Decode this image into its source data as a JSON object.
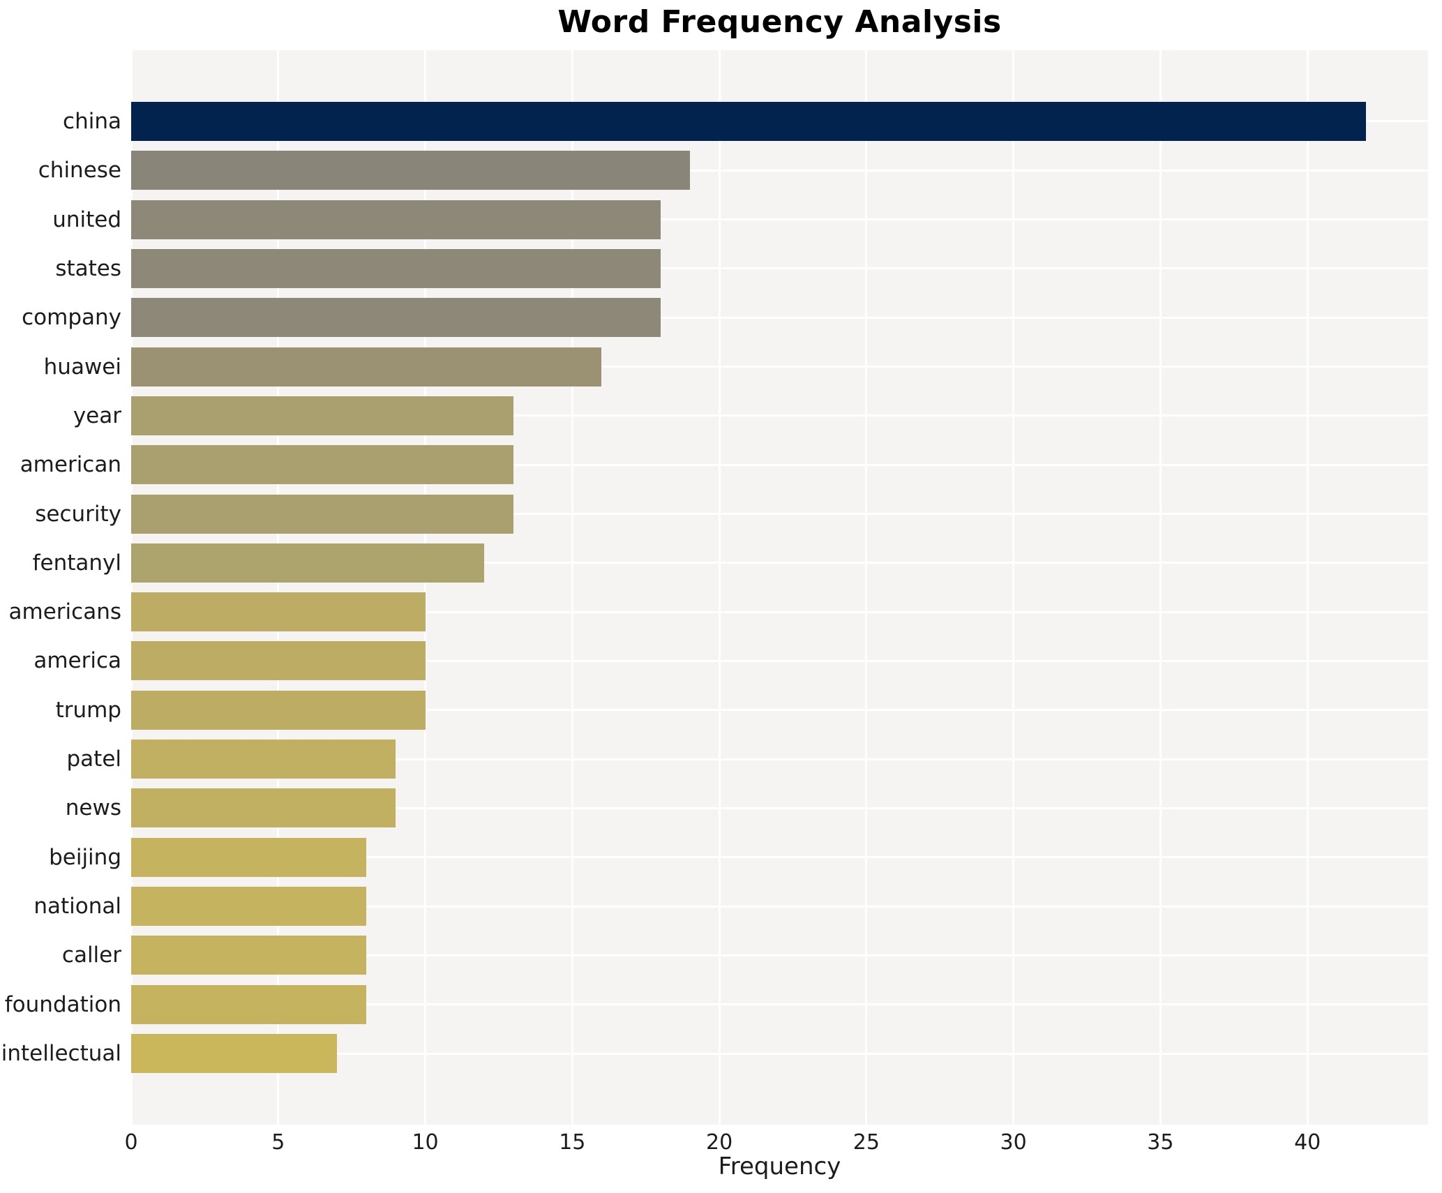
{
  "title": "Word Frequency Analysis",
  "chart_data": {
    "type": "bar",
    "orientation": "horizontal",
    "title": "Word Frequency Analysis",
    "xlabel": "Frequency",
    "ylabel": "",
    "categories": [
      "china",
      "chinese",
      "united",
      "states",
      "company",
      "huawei",
      "year",
      "american",
      "security",
      "fentanyl",
      "americans",
      "america",
      "trump",
      "patel",
      "news",
      "beijing",
      "national",
      "caller",
      "foundation",
      "intellectual"
    ],
    "values": [
      42,
      19,
      18,
      18,
      18,
      16,
      13,
      13,
      13,
      12,
      10,
      10,
      10,
      9,
      9,
      8,
      8,
      8,
      8,
      7
    ],
    "bar_colors": [
      "#03234f",
      "#898578",
      "#8d8877",
      "#8d8877",
      "#8d8877",
      "#9b9273",
      "#a99f6f",
      "#a99f6f",
      "#a99f6f",
      "#ada36d",
      "#bdac64",
      "#bdac64",
      "#bdac64",
      "#c1b062",
      "#c1b062",
      "#c6b35f",
      "#c6b35f",
      "#c6b35f",
      "#c6b35f",
      "#cab75c"
    ],
    "xticks": [
      0,
      5,
      10,
      15,
      20,
      25,
      30,
      35,
      40
    ],
    "xlim": [
      0,
      44.1
    ],
    "grid": true,
    "legend_position": "none",
    "plot_background": "#f5f4f2",
    "grid_color": "#ffffff",
    "text_color": "#1c1c1c"
  }
}
